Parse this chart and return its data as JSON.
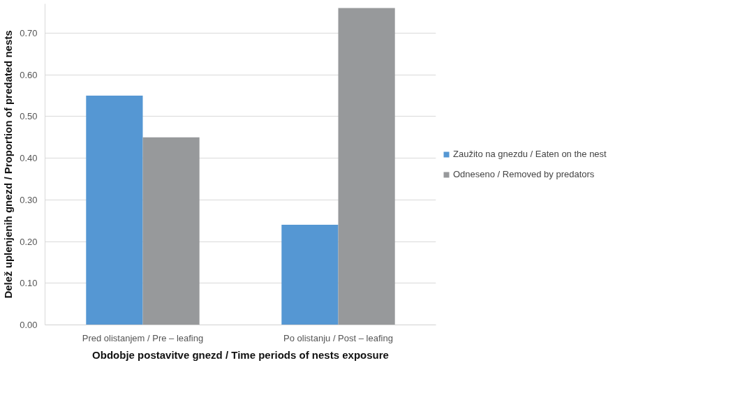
{
  "chart_data": {
    "type": "bar",
    "xlabel": "Obdobje postavitve gnezd / Time periods of nests exposure",
    "ylabel": "Delež uplenjenih gnezd / Proportion of predated nests",
    "categories": [
      "Pred olistanjem / Pre – leafing",
      "Po olistanju / Post – leafing"
    ],
    "series": [
      {
        "name": "Zaužito na gnezdu / Eaten on the nest",
        "color": "#5597d3",
        "values": [
          0.55,
          0.24
        ]
      },
      {
        "name": "Odneseno / Removed by predators",
        "color": "#97999b",
        "values": [
          0.45,
          0.76
        ]
      }
    ],
    "ylim": [
      0,
      0.77
    ],
    "yticks": [
      {
        "value": 0,
        "label": "0.00"
      },
      {
        "value": 0.1,
        "label": "0.10"
      },
      {
        "value": 0.2,
        "label": "0.20"
      },
      {
        "value": 0.3,
        "label": "0.30"
      },
      {
        "value": 0.4,
        "label": "0.40"
      },
      {
        "value": 0.5,
        "label": "0.50"
      },
      {
        "value": 0.6,
        "label": "0.60"
      },
      {
        "value": 0.7,
        "label": "0.70"
      }
    ],
    "grid": "y",
    "legend": "right"
  }
}
